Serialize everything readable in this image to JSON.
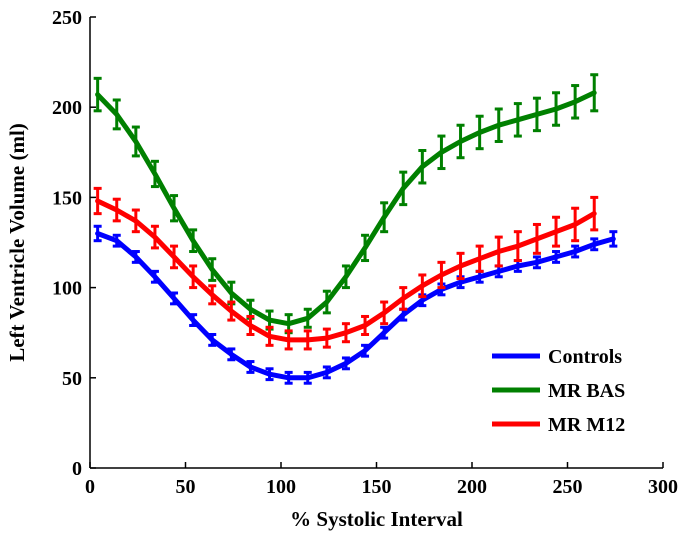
{
  "chart_data": {
    "type": "line",
    "title": "",
    "xlabel": "% Systolic Interval",
    "ylabel": "Left Ventricle Volume (ml)",
    "xlim": [
      0,
      300
    ],
    "ylim": [
      0,
      250
    ],
    "xticks": [
      0,
      50,
      100,
      150,
      200,
      250,
      300
    ],
    "yticks": [
      0,
      50,
      100,
      150,
      200,
      250
    ],
    "grid": false,
    "legend_position": "bottom-right",
    "series": [
      {
        "name": "Controls",
        "color": "#0000FF",
        "x": [
          4,
          14,
          24,
          34,
          44,
          54,
          64,
          74,
          84,
          94,
          104,
          114,
          124,
          134,
          144,
          154,
          164,
          174,
          184,
          194,
          204,
          214,
          224,
          234,
          244,
          254,
          264,
          274
        ],
        "y": [
          130,
          126,
          117,
          106,
          94,
          82,
          71,
          63,
          56,
          52,
          50,
          50,
          53,
          58,
          65,
          75,
          85,
          93,
          99,
          103,
          106,
          109,
          112,
          114,
          117,
          120,
          124,
          127
        ],
        "err": [
          4,
          3,
          3,
          3,
          3,
          3,
          3,
          3,
          3,
          3,
          3,
          3,
          3,
          3,
          3,
          3,
          3,
          3,
          3,
          3,
          3,
          3,
          3,
          3,
          3,
          3,
          3,
          4
        ]
      },
      {
        "name": "MR BAS",
        "color": "#008000",
        "x": [
          4,
          14,
          24,
          34,
          44,
          54,
          64,
          74,
          84,
          94,
          104,
          114,
          124,
          134,
          144,
          154,
          164,
          174,
          184,
          194,
          204,
          214,
          224,
          234,
          244,
          254,
          264
        ],
        "y": [
          207,
          196,
          181,
          163,
          144,
          126,
          110,
          97,
          88,
          82,
          80,
          83,
          92,
          106,
          122,
          139,
          155,
          167,
          175,
          181,
          186,
          190,
          193,
          196,
          199,
          203,
          208
        ],
        "err": [
          9,
          8,
          8,
          7,
          7,
          6,
          6,
          6,
          5,
          5,
          5,
          5,
          6,
          6,
          7,
          8,
          9,
          9,
          9,
          9,
          9,
          9,
          9,
          9,
          9,
          9,
          10
        ]
      },
      {
        "name": "MR M12",
        "color": "#FF0000",
        "x": [
          4,
          14,
          24,
          34,
          44,
          54,
          64,
          74,
          84,
          94,
          104,
          114,
          124,
          134,
          144,
          154,
          164,
          174,
          184,
          194,
          204,
          214,
          224,
          234,
          244,
          254,
          264
        ],
        "y": [
          148,
          143,
          137,
          128,
          117,
          106,
          96,
          87,
          79,
          73,
          71,
          71,
          72,
          75,
          79,
          86,
          94,
          101,
          107,
          112,
          116,
          120,
          123,
          127,
          131,
          135,
          141
        ],
        "err": [
          7,
          6,
          6,
          6,
          6,
          6,
          5,
          5,
          5,
          5,
          5,
          5,
          5,
          5,
          5,
          6,
          6,
          6,
          7,
          7,
          7,
          8,
          8,
          8,
          8,
          9,
          9
        ]
      }
    ]
  }
}
